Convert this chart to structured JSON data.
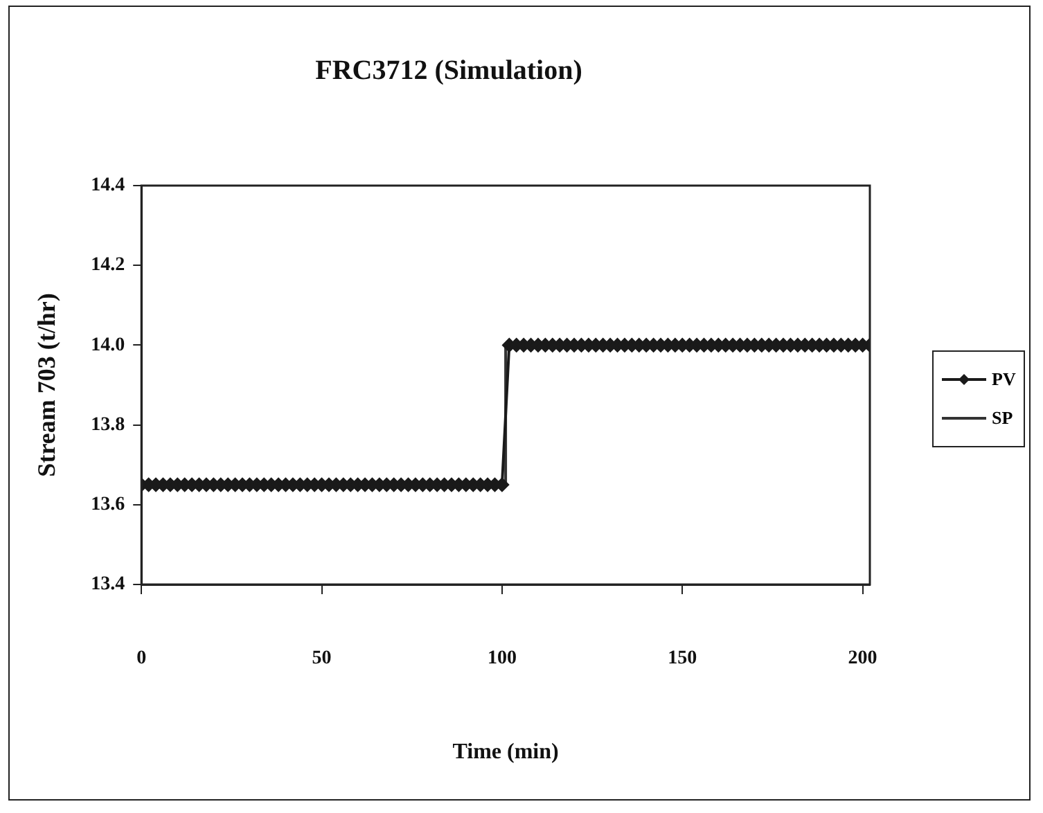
{
  "chart_data": {
    "type": "line",
    "title": "FRC3712 (Simulation)",
    "xlabel": "Time (min)",
    "ylabel": "Stream 703 (t/hr)",
    "xlim": [
      0,
      202
    ],
    "xticks": [
      0,
      50,
      100,
      150,
      200
    ],
    "ylim": [
      13.4,
      14.4
    ],
    "yticks": [
      {
        "value": 13.4,
        "label": "13.4"
      },
      13.6,
      13.8,
      {
        "value": 14.0,
        "label": "14.0"
      },
      14.2,
      14.4
    ],
    "grid": false,
    "legend": "right",
    "series": [
      {
        "name": "PV",
        "color": "#1a1a1a",
        "marker": "diamond",
        "x": [
          0,
          2,
          4,
          6,
          8,
          10,
          12,
          14,
          16,
          18,
          20,
          22,
          24,
          26,
          28,
          30,
          32,
          34,
          36,
          38,
          40,
          42,
          44,
          46,
          48,
          50,
          52,
          54,
          56,
          58,
          60,
          62,
          64,
          66,
          68,
          70,
          72,
          74,
          76,
          78,
          80,
          82,
          84,
          86,
          88,
          90,
          92,
          94,
          96,
          98,
          100,
          102,
          104,
          106,
          108,
          110,
          112,
          114,
          116,
          118,
          120,
          122,
          124,
          126,
          128,
          130,
          132,
          134,
          136,
          138,
          140,
          142,
          144,
          146,
          148,
          150,
          152,
          154,
          156,
          158,
          160,
          162,
          164,
          166,
          168,
          170,
          172,
          174,
          176,
          178,
          180,
          182,
          184,
          186,
          188,
          190,
          192,
          194,
          196,
          198,
          200,
          202
        ],
        "values": [
          13.65,
          13.65,
          13.65,
          13.65,
          13.65,
          13.65,
          13.65,
          13.65,
          13.65,
          13.65,
          13.65,
          13.65,
          13.65,
          13.65,
          13.65,
          13.65,
          13.65,
          13.65,
          13.65,
          13.65,
          13.65,
          13.65,
          13.65,
          13.65,
          13.65,
          13.65,
          13.65,
          13.65,
          13.65,
          13.65,
          13.65,
          13.65,
          13.65,
          13.65,
          13.65,
          13.65,
          13.65,
          13.65,
          13.65,
          13.65,
          13.65,
          13.65,
          13.65,
          13.65,
          13.65,
          13.65,
          13.65,
          13.65,
          13.65,
          13.65,
          13.65,
          14.0,
          14.0,
          14.0,
          14.0,
          14.0,
          14.0,
          14.0,
          14.0,
          14.0,
          14.0,
          14.0,
          14.0,
          14.0,
          14.0,
          14.0,
          14.0,
          14.0,
          14.0,
          14.0,
          14.0,
          14.0,
          14.0,
          14.0,
          14.0,
          14.0,
          14.0,
          14.0,
          14.0,
          14.0,
          14.0,
          14.0,
          14.0,
          14.0,
          14.0,
          14.0,
          14.0,
          14.0,
          14.0,
          14.0,
          14.0,
          14.0,
          14.0,
          14.0,
          14.0,
          14.0,
          14.0,
          14.0,
          14.0,
          14.0,
          14.0,
          14.0
        ]
      },
      {
        "name": "SP",
        "color": "#333333",
        "type": "step",
        "marker": "none",
        "x": [
          0,
          101,
          202
        ],
        "values": [
          13.65,
          14.0,
          14.0
        ]
      }
    ]
  }
}
